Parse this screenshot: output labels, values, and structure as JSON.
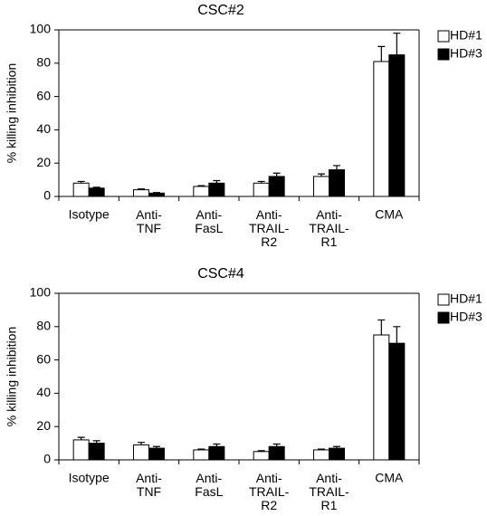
{
  "chart_data": [
    {
      "type": "bar",
      "title": "CSC#2",
      "y_label": "% killing inhibition",
      "categories": [
        "Isotype",
        "Anti-\nTNF",
        "Anti-\nFasL",
        "Anti-\nTRAIL-\nR2",
        "Anti-\nTRAIL-\nR1",
        "CMA"
      ],
      "series": [
        {
          "name": "HD#1",
          "color": "#ffffff",
          "values": [
            8,
            4,
            6,
            8,
            12,
            81
          ],
          "errors": [
            1,
            0.5,
            0.5,
            1,
            1.5,
            9
          ]
        },
        {
          "name": "HD#3",
          "color": "#000000",
          "values": [
            5,
            2,
            8,
            12,
            16,
            85
          ],
          "errors": [
            0.5,
            0.3,
            1.5,
            2,
            2.5,
            13
          ]
        }
      ],
      "ylim": [
        0,
        100
      ],
      "yticks": [
        0,
        20,
        40,
        60,
        80,
        100
      ],
      "legend": "right"
    },
    {
      "type": "bar",
      "title": "CSC#4",
      "y_label": "% killing inhibition",
      "categories": [
        "Isotype",
        "Anti-\nTNF",
        "Anti-\nFasL",
        "Anti-\nTRAIL-\nR2",
        "Anti-\nTRAIL-\nR1",
        "CMA"
      ],
      "series": [
        {
          "name": "HD#1",
          "color": "#ffffff",
          "values": [
            12,
            9,
            6,
            5,
            6,
            75
          ],
          "errors": [
            1.5,
            1.5,
            0.5,
            0.5,
            0.5,
            9
          ]
        },
        {
          "name": "HD#3",
          "color": "#000000",
          "values": [
            10,
            7,
            8,
            8,
            7,
            70
          ],
          "errors": [
            1.5,
            1,
            1.5,
            1.5,
            1,
            10
          ]
        }
      ],
      "ylim": [
        0,
        100
      ],
      "yticks": [
        0,
        20,
        40,
        60,
        80,
        100
      ],
      "legend": "right"
    }
  ]
}
